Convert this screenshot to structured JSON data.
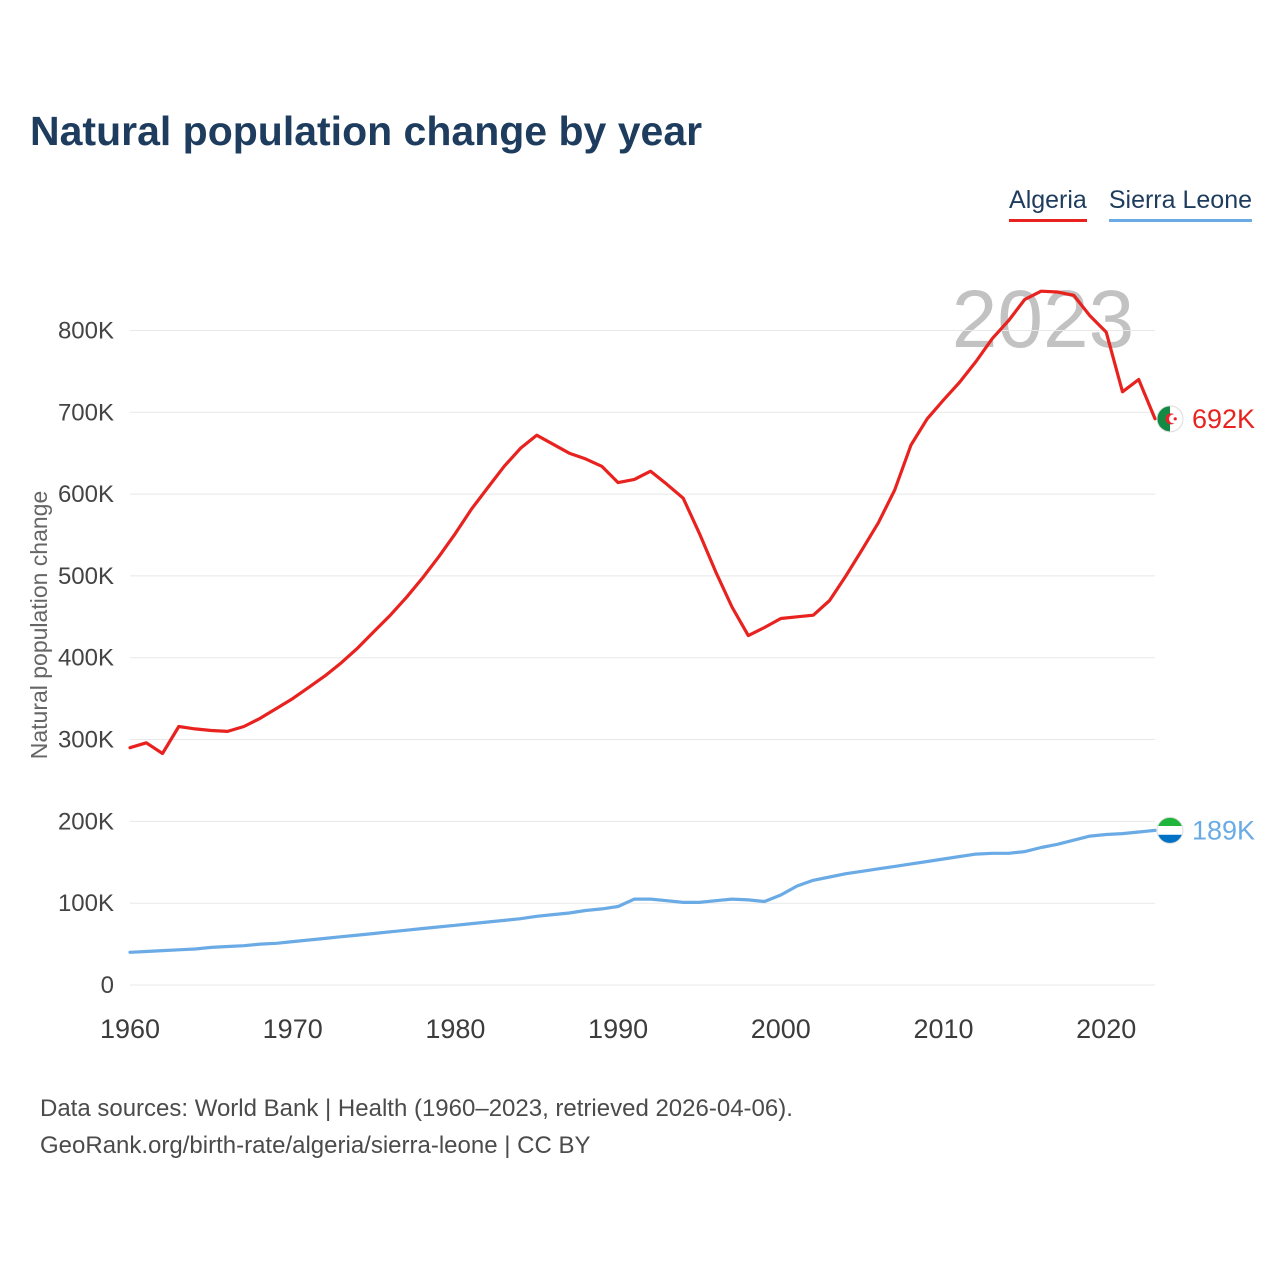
{
  "title": "Natural population change by year",
  "watermark": "2023",
  "y_axis_label": "Natural population change",
  "legend": [
    {
      "label": "Algeria",
      "color": "#e8231f"
    },
    {
      "label": "Sierra Leone",
      "color": "#6babe5"
    }
  ],
  "footer": {
    "line1": "Data sources: World Bank | Health (1960–2023, retrieved 2026-04-06).",
    "line2": "GeoRank.org/birth-rate/algeria/sierra-leone | CC BY"
  },
  "chart_data": {
    "type": "line",
    "title": "Natural population change by year",
    "xlabel": "",
    "ylabel": "Natural population change",
    "xlim": [
      1960,
      2023
    ],
    "ylim": [
      0,
      880000
    ],
    "grid": true,
    "legend_position": "top-right",
    "xticks": [
      1960,
      1970,
      1980,
      1990,
      2000,
      2010,
      2020
    ],
    "yticks": [
      0,
      100000,
      200000,
      300000,
      400000,
      500000,
      600000,
      700000,
      800000
    ],
    "ytick_labels": [
      "0",
      "100K",
      "200K",
      "300K",
      "400K",
      "500K",
      "600K",
      "700K",
      "800K"
    ],
    "x": [
      1960,
      1961,
      1962,
      1963,
      1964,
      1965,
      1966,
      1967,
      1968,
      1969,
      1970,
      1971,
      1972,
      1973,
      1974,
      1975,
      1976,
      1977,
      1978,
      1979,
      1980,
      1981,
      1982,
      1983,
      1984,
      1985,
      1986,
      1987,
      1988,
      1989,
      1990,
      1991,
      1992,
      1993,
      1994,
      1995,
      1996,
      1997,
      1998,
      1999,
      2000,
      2001,
      2002,
      2003,
      2004,
      2005,
      2006,
      2007,
      2008,
      2009,
      2010,
      2011,
      2012,
      2013,
      2014,
      2015,
      2016,
      2017,
      2018,
      2019,
      2020,
      2021,
      2022,
      2023
    ],
    "series": [
      {
        "name": "Algeria",
        "color": "#e8231f",
        "flag": "algeria",
        "flag_icon": "algeria-flag-icon",
        "end_label": "692K",
        "values": [
          290000,
          296000,
          283000,
          316000,
          313000,
          311000,
          310000,
          316000,
          326000,
          338000,
          350000,
          364000,
          378000,
          394000,
          412000,
          432000,
          452000,
          474000,
          498000,
          524000,
          552000,
          582000,
          608000,
          634000,
          656000,
          672000,
          661000,
          650000,
          643000,
          634000,
          614000,
          618000,
          628000,
          612000,
          595000,
          552000,
          505000,
          462000,
          427000,
          437000,
          448000,
          450000,
          452000,
          470000,
          500000,
          532000,
          565000,
          605000,
          660000,
          692000,
          715000,
          737000,
          762000,
          790000,
          812000,
          838000,
          848000,
          847000,
          843000,
          818000,
          798000,
          725000,
          740000,
          692000
        ]
      },
      {
        "name": "Sierra Leone",
        "color": "#6babe5",
        "flag": "sierra-leone",
        "flag_icon": "sierra-leone-flag-icon",
        "end_label": "189K",
        "values": [
          40000,
          41000,
          42000,
          43000,
          44000,
          46000,
          47000,
          48000,
          50000,
          51000,
          53000,
          55000,
          57000,
          59000,
          61000,
          63000,
          65000,
          67000,
          69000,
          71000,
          73000,
          75000,
          77000,
          79000,
          81000,
          84000,
          86000,
          88000,
          91000,
          93000,
          96000,
          105000,
          105000,
          103000,
          101000,
          101000,
          103000,
          105000,
          104000,
          102000,
          110000,
          121000,
          128000,
          132000,
          136000,
          139000,
          142000,
          145000,
          148000,
          151000,
          154000,
          157000,
          160000,
          161000,
          161000,
          163000,
          168000,
          172000,
          177000,
          182000,
          184000,
          185000,
          187000,
          189000
        ]
      }
    ]
  }
}
